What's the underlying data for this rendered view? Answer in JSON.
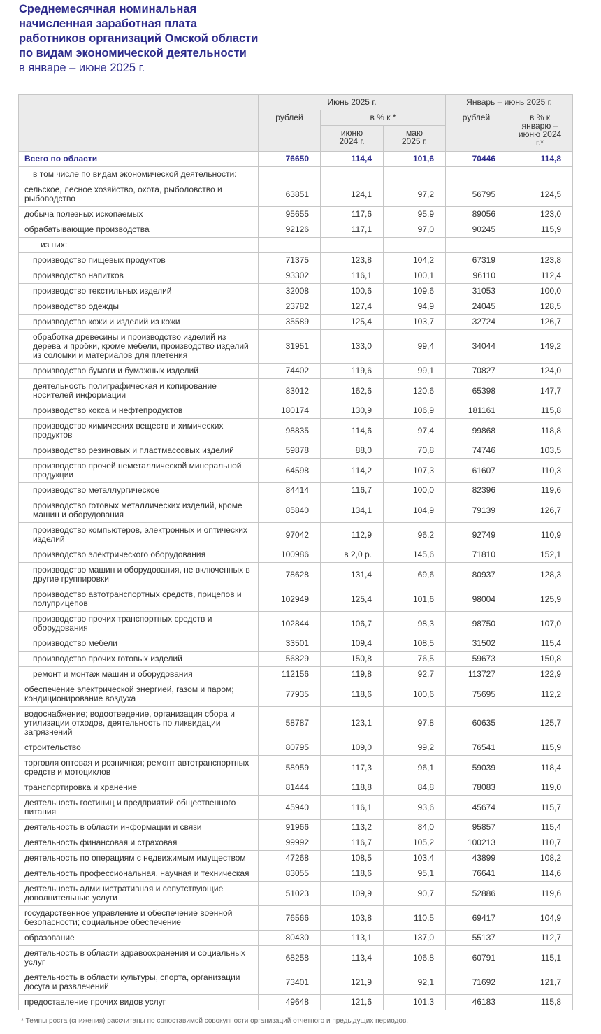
{
  "title": {
    "lines": [
      "Среднемесячная номинальная",
      "начисленная заработная плата",
      "работников организаций Омской области",
      "по видам экономической деятельности"
    ],
    "period": "в январе – июне 2025 г."
  },
  "colors": {
    "title": "#2e2c8c",
    "header_bg": "#ebebeb",
    "border": "#c6c6c6"
  },
  "header": {
    "june": "Июнь 2025 г.",
    "jan_june": "Январь – июнь 2025 г.",
    "rub": "рублей",
    "pct": "в % к *",
    "to_june_2024": "июню 2024 г.",
    "to_may_2025": "маю 2025 г.",
    "pct_jan_june": "в % к январю – июню 2024 г.*"
  },
  "rows": [
    {
      "label": "Всего по области",
      "level": 0,
      "total": true,
      "values": [
        "76650",
        "114,4",
        "101,6",
        "70446",
        "114,8"
      ]
    },
    {
      "label": "в том числе по видам экономической деятельности:",
      "level": 1,
      "values": [
        "",
        "",
        "",
        "",
        ""
      ]
    },
    {
      "label": "сельское, лесное хозяйство, охота, рыболовство и рыбоводство",
      "level": 0,
      "values": [
        "63851",
        "124,1",
        "97,2",
        "56795",
        "124,5"
      ]
    },
    {
      "label": "добыча полезных ископаемых",
      "level": 0,
      "values": [
        "95655",
        "117,6",
        "95,9",
        "89056",
        "123,0"
      ]
    },
    {
      "label": "обрабатывающие производства",
      "level": 0,
      "values": [
        "92126",
        "117,1",
        "97,0",
        "90245",
        "115,9"
      ]
    },
    {
      "label": "из них:",
      "level": 2,
      "values": [
        "",
        "",
        "",
        "",
        ""
      ]
    },
    {
      "label": "производство пищевых продуктов",
      "level": 1,
      "values": [
        "71375",
        "123,8",
        "104,2",
        "67319",
        "123,8"
      ]
    },
    {
      "label": "производство напитков",
      "level": 1,
      "values": [
        "93302",
        "116,1",
        "100,1",
        "96110",
        "112,4"
      ]
    },
    {
      "label": "производство текстильных изделий",
      "level": 1,
      "values": [
        "32008",
        "100,6",
        "109,6",
        "31053",
        "100,0"
      ]
    },
    {
      "label": "производство одежды",
      "level": 1,
      "values": [
        "23782",
        "127,4",
        "94,9",
        "24045",
        "128,5"
      ]
    },
    {
      "label": "производство кожи и изделий из кожи",
      "level": 1,
      "values": [
        "35589",
        "125,4",
        "103,7",
        "32724",
        "126,7"
      ]
    },
    {
      "label": "обработка древесины и производство изделий из дерева и пробки, кроме мебели, производство изделий из соломки и материалов для плетения",
      "level": 1,
      "values": [
        "31951",
        "133,0",
        "99,4",
        "34044",
        "149,2"
      ]
    },
    {
      "label": "производство бумаги и бумажных изделий",
      "level": 1,
      "values": [
        "74402",
        "119,6",
        "99,1",
        "70827",
        "124,0"
      ]
    },
    {
      "label": "деятельность полиграфическая и копирование носителей информации",
      "level": 1,
      "values": [
        "83012",
        "162,6",
        "120,6",
        "65398",
        "147,7"
      ]
    },
    {
      "label": "производство кокса и нефтепродуктов",
      "level": 1,
      "values": [
        "180174",
        "130,9",
        "106,9",
        "181161",
        "115,8"
      ]
    },
    {
      "label": "производство химических веществ и химических продуктов",
      "level": 1,
      "values": [
        "98835",
        "114,6",
        "97,4",
        "99868",
        "118,8"
      ]
    },
    {
      "label": "производство резиновых и пластмассовых изделий",
      "level": 1,
      "values": [
        "59878",
        "88,0",
        "70,8",
        "74746",
        "103,5"
      ]
    },
    {
      "label": "производство прочей неметаллической минеральной продукции",
      "level": 1,
      "values": [
        "64598",
        "114,2",
        "107,3",
        "61607",
        "110,3"
      ]
    },
    {
      "label": "производство металлургическое",
      "level": 1,
      "values": [
        "84414",
        "116,7",
        "100,0",
        "82396",
        "119,6"
      ]
    },
    {
      "label": "производство готовых металлических изделий, кроме машин и оборудования",
      "level": 1,
      "values": [
        "85840",
        "134,1",
        "104,9",
        "79139",
        "126,7"
      ]
    },
    {
      "label": "производство компьютеров, электронных и оптических изделий",
      "level": 1,
      "values": [
        "97042",
        "112,9",
        "96,2",
        "92749",
        "110,9"
      ]
    },
    {
      "label": "производство электрического оборудования",
      "level": 1,
      "values": [
        "100986",
        "в 2,0 р.",
        "145,6",
        "71810",
        "152,1"
      ]
    },
    {
      "label": "производство машин и оборудования, не включенных в другие группировки",
      "level": 1,
      "values": [
        "78628",
        "131,4",
        "69,6",
        "80937",
        "128,3"
      ]
    },
    {
      "label": "производство автотранспортных средств, прицепов и полуприцепов",
      "level": 1,
      "values": [
        "102949",
        "125,4",
        "101,6",
        "98004",
        "125,9"
      ]
    },
    {
      "label": "производство прочих транспортных средств и оборудования",
      "level": 1,
      "values": [
        "102844",
        "106,7",
        "98,3",
        "98750",
        "107,0"
      ]
    },
    {
      "label": "производство мебели",
      "level": 1,
      "values": [
        "33501",
        "109,4",
        "108,5",
        "31502",
        "115,4"
      ]
    },
    {
      "label": "производство прочих готовых изделий",
      "level": 1,
      "values": [
        "56829",
        "150,8",
        "76,5",
        "59673",
        "150,8"
      ]
    },
    {
      "label": "ремонт и монтаж машин и оборудования",
      "level": 1,
      "values": [
        "112156",
        "119,8",
        "92,7",
        "113727",
        "122,9"
      ]
    },
    {
      "label": "обеспечение электрической энергией, газом и паром; кондиционирование воздуха",
      "level": 0,
      "values": [
        "77935",
        "118,6",
        "100,6",
        "75695",
        "112,2"
      ]
    },
    {
      "label": "водоснабжение; водоотведение, организация сбора и утилизации отходов, деятельность по ликвидации загрязнений",
      "level": 0,
      "values": [
        "58787",
        "123,1",
        "97,8",
        "60635",
        "125,7"
      ]
    },
    {
      "label": "строительство",
      "level": 0,
      "values": [
        "80795",
        "109,0",
        "99,2",
        "76541",
        "115,9"
      ]
    },
    {
      "label": "торговля оптовая и розничная; ремонт автотранспортных средств и мотоциклов",
      "level": 0,
      "values": [
        "58959",
        "117,3",
        "96,1",
        "59039",
        "118,4"
      ]
    },
    {
      "label": "транспортировка и хранение",
      "level": 0,
      "values": [
        "81444",
        "118,8",
        "84,8",
        "78083",
        "119,0"
      ]
    },
    {
      "label": "деятельность гостиниц и предприятий общественного питания",
      "level": 0,
      "values": [
        "45940",
        "116,1",
        "93,6",
        "45674",
        "115,7"
      ]
    },
    {
      "label": "деятельность в области информации и связи",
      "level": 0,
      "values": [
        "91966",
        "113,2",
        "84,0",
        "95857",
        "115,4"
      ]
    },
    {
      "label": "деятельность финансовая и страховая",
      "level": 0,
      "values": [
        "99992",
        "116,7",
        "105,2",
        "100213",
        "110,7"
      ]
    },
    {
      "label": "деятельность по операциям с недвижимым имуществом",
      "level": 0,
      "values": [
        "47268",
        "108,5",
        "103,4",
        "43899",
        "108,2"
      ]
    },
    {
      "label": "деятельность профессиональная, научная и техническая",
      "level": 0,
      "values": [
        "83055",
        "118,6",
        "95,1",
        "76641",
        "114,6"
      ]
    },
    {
      "label": "деятельность административная и сопутствующие дополнительные услуги",
      "level": 0,
      "values": [
        "51023",
        "109,9",
        "90,7",
        "52886",
        "119,6"
      ]
    },
    {
      "label": "государственное управление и обеспечение военной безопасности; социальное обеспечение",
      "level": 0,
      "values": [
        "76566",
        "103,8",
        "110,5",
        "69417",
        "104,9"
      ]
    },
    {
      "label": "образование",
      "level": 0,
      "values": [
        "80430",
        "113,1",
        "137,0",
        "55137",
        "112,7"
      ]
    },
    {
      "label": "деятельность в области здравоохранения и социальных услуг",
      "level": 0,
      "values": [
        "68258",
        "113,4",
        "106,8",
        "60791",
        "115,1"
      ]
    },
    {
      "label": "деятельность в области культуры, спорта, организации досуга и развлечений",
      "level": 0,
      "values": [
        "73401",
        "121,9",
        "92,1",
        "71692",
        "121,7"
      ]
    },
    {
      "label": "предоставление прочих видов услуг",
      "level": 0,
      "values": [
        "49648",
        "121,6",
        "101,3",
        "46183",
        "115,8"
      ]
    }
  ],
  "footnote": "* Темпы роста (снижения) рассчитаны по сопоставимой совокупности организаций отчетного и предыдущих периодов."
}
